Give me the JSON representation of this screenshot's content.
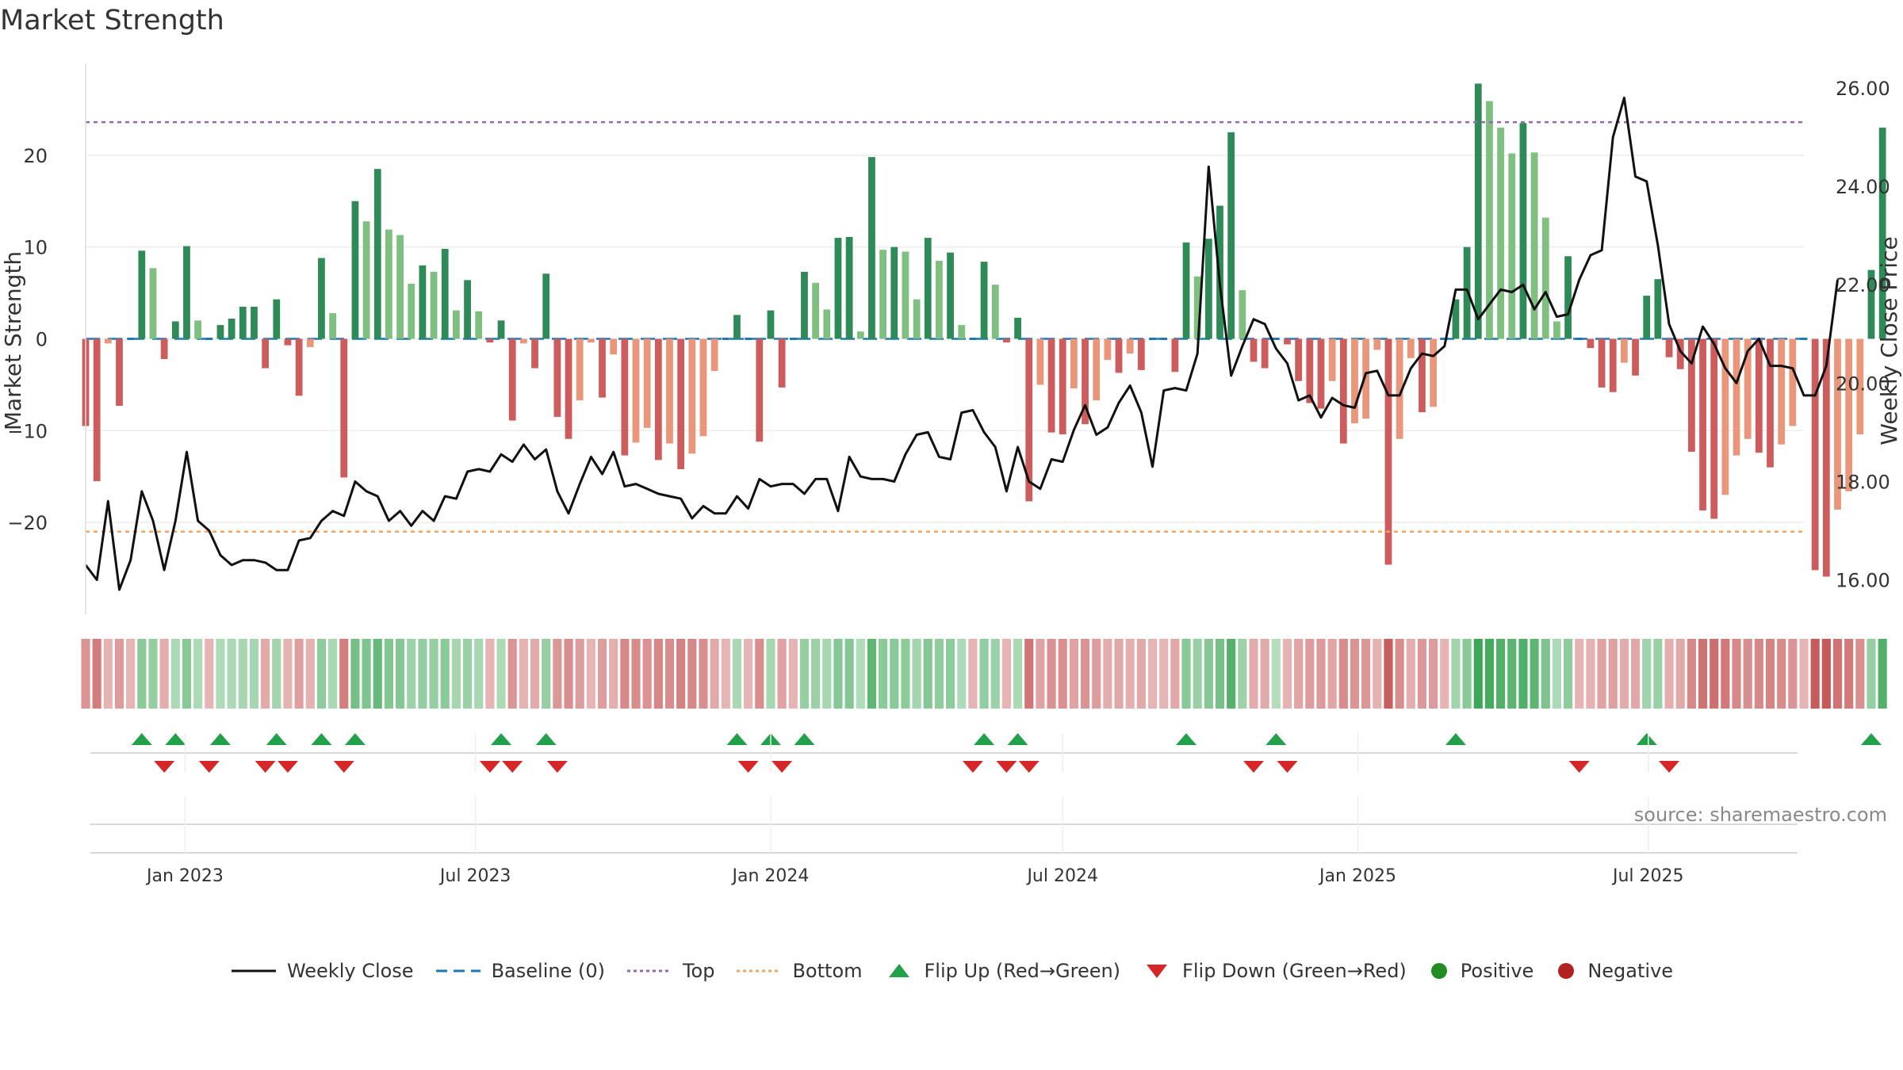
{
  "title": "Market Strength",
  "source": "source: sharemaestro.com",
  "colors": {
    "dark_green": "#2e8b57",
    "light_green": "#7fbf7f",
    "dark_red": "#cd5c5c",
    "light_red": "#e9967a",
    "close_line": "#111111",
    "baseline": "#1f77b4",
    "top": "#9467bd",
    "bottom": "#f4a460",
    "flip_up": "#22a04a",
    "flip_down": "#d62728",
    "positive": "#228b22",
    "negative": "#b22222"
  },
  "legend": [
    {
      "label": "Weekly Close",
      "icon": "solid-line-icon",
      "color": "#111111"
    },
    {
      "label": "Baseline (0)",
      "icon": "dash-line-icon",
      "color": "#1f77b4"
    },
    {
      "label": "Top",
      "icon": "dotted-line-icon",
      "color": "#9467bd"
    },
    {
      "label": "Bottom",
      "icon": "dotted-line-icon",
      "color": "#f4a460"
    },
    {
      "label": "Flip Up (Red→Green)",
      "icon": "triangle-up-icon",
      "color": "#22a04a"
    },
    {
      "label": "Flip Down (Green→Red)",
      "icon": "triangle-down-icon",
      "color": "#d62728"
    },
    {
      "label": "Positive",
      "icon": "circle-icon",
      "color": "#228b22"
    },
    {
      "label": "Negative",
      "icon": "circle-icon",
      "color": "#b22222"
    }
  ],
  "chart_data": {
    "type": "bar",
    "ylabel": "Market Strength",
    "y2label": "Weekly Close Price",
    "ylim": [
      -30,
      30
    ],
    "y2lim": [
      15.3,
      26.5
    ],
    "yticks": [
      -20,
      -10,
      0,
      10,
      20
    ],
    "yticklabels": [
      "−20",
      "−10",
      "0",
      "10",
      "20"
    ],
    "y2ticks": [
      16,
      18,
      20,
      22,
      24,
      26
    ],
    "y2ticklabels": [
      "16.00",
      "18.00",
      "20.00",
      "22.00",
      "24.00",
      "26.00"
    ],
    "xlim": [
      "2022-10-31",
      "2025-10-06"
    ],
    "xticks": [
      "2023-01-01",
      "2023-07-01",
      "2024-01-01",
      "2024-07-01",
      "2025-01-01",
      "2025-07-01"
    ],
    "xticklabels": [
      "Jan 2023",
      "Jul 2023",
      "Jan 2024",
      "Jul 2024",
      "Jan 2025",
      "Jul 2025"
    ],
    "start_week": "2022-10-31",
    "top_level": 23.6,
    "bottom_level": -21,
    "baseline": 0,
    "strength": [
      -9.5,
      -15.5,
      -0.5,
      -7.3,
      -0.3,
      9.6,
      7.7,
      -2.2,
      1.9,
      10.1,
      2.0,
      -0.2,
      1.5,
      2.2,
      3.5,
      3.5,
      -3.2,
      4.3,
      -0.7,
      -6.2,
      -0.9,
      8.8,
      2.8,
      -15.1,
      15,
      12.8,
      18.5,
      11.9,
      11.3,
      6.0,
      8.0,
      7.3,
      9.8,
      3.1,
      6.4,
      3.0,
      -0.4,
      2.0,
      -8.9,
      -0.5,
      -3.2,
      7.1,
      -8.5,
      -10.9,
      -6.7,
      -0.4,
      -6.4,
      -1.7,
      -12.7,
      -11.3,
      -9.7,
      -13.2,
      -11.4,
      -14.2,
      -12.5,
      -10.6,
      -3.5,
      -0.2,
      2.6,
      -0.3,
      -11.2,
      3.1,
      -5.3,
      -0.3,
      7.3,
      6.1,
      3.2,
      11.0,
      11.1,
      0.8,
      19.8,
      9.7,
      10.0,
      9.5,
      4.3,
      11.0,
      8.5,
      9.4,
      1.5,
      -0.3,
      8.4,
      5.9,
      -0.4,
      2.3,
      -17.7,
      -5.0,
      -10.2,
      -10.4,
      -5.4,
      -9.3,
      -6.7,
      -2.3,
      -3.7,
      -1.6,
      -3.4,
      -0.2,
      -0.2,
      -3.6,
      10.5,
      6.8,
      10.9,
      14.5,
      22.5,
      5.3,
      -2.5,
      -3.2,
      0.2,
      -0.6,
      -4.6,
      -7.0,
      -7.6,
      -4.6,
      -11.4,
      -9.2,
      -8.7,
      -1.2,
      -24.6,
      -10.9,
      -2.1,
      -8.0,
      -7.4,
      -0.2,
      4.3,
      10.0,
      27.8,
      25.9,
      23.0,
      20.2,
      23.5,
      20.3,
      13.2,
      1.9,
      9.0,
      -0.2,
      -1.0,
      -5.3,
      -5.8,
      -2.6,
      -4.0,
      4.7,
      6.5,
      -2.0,
      -3.3,
      -12.3,
      -18.7,
      -19.6,
      -17.0,
      -12.7,
      -10.9,
      -12.4,
      -14.0,
      -11.5,
      -9.5,
      -0.2,
      -25.2,
      -25.9,
      -18.6,
      -16.6,
      -10.4,
      7.5,
      23.0
    ],
    "close": [
      16.3,
      16.0,
      17.6,
      15.8,
      16.4,
      17.8,
      17.2,
      16.2,
      17.2,
      18.6,
      17.2,
      17.0,
      16.5,
      16.3,
      16.4,
      16.4,
      16.35,
      16.2,
      16.2,
      16.8,
      16.85,
      17.2,
      17.4,
      17.3,
      18.0,
      17.8,
      17.7,
      17.2,
      17.4,
      17.1,
      17.4,
      17.2,
      17.7,
      17.65,
      18.2,
      18.25,
      18.2,
      18.55,
      18.4,
      18.75,
      18.45,
      18.65,
      17.8,
      17.35,
      17.95,
      18.5,
      18.15,
      18.6,
      17.9,
      17.95,
      17.85,
      17.75,
      17.7,
      17.65,
      17.25,
      17.5,
      17.35,
      17.35,
      17.7,
      17.45,
      18.05,
      17.9,
      17.95,
      17.95,
      17.75,
      18.05,
      18.05,
      17.4,
      18.5,
      18.1,
      18.05,
      18.05,
      18.0,
      18.55,
      18.95,
      19.0,
      18.5,
      18.45,
      19.4,
      19.45,
      19.0,
      18.7,
      17.8,
      18.7,
      18.0,
      17.85,
      18.45,
      18.4,
      19.05,
      19.55,
      18.95,
      19.1,
      19.6,
      19.95,
      19.4,
      18.3,
      19.85,
      19.9,
      19.85,
      20.6,
      24.4,
      22.0,
      20.15,
      20.75,
      21.3,
      21.2,
      20.7,
      20.4,
      19.65,
      19.75,
      19.3,
      19.7,
      19.55,
      19.5,
      20.2,
      20.25,
      19.75,
      19.75,
      20.3,
      20.6,
      20.55,
      20.75,
      21.9,
      21.9,
      21.3,
      21.6,
      21.9,
      21.85,
      22.0,
      21.5,
      21.85,
      21.35,
      21.4,
      22.1,
      22.6,
      22.7,
      25.0,
      25.8,
      24.2,
      24.1,
      22.8,
      21.2,
      20.65,
      20.4,
      21.15,
      20.8,
      20.3,
      20.0,
      20.65,
      20.9,
      20.35,
      20.35,
      20.3,
      19.75,
      19.75,
      20.35,
      22.1
    ]
  },
  "color_strip": {
    "description": "Shade intensity per week mirrors strength sign and magnitude"
  }
}
